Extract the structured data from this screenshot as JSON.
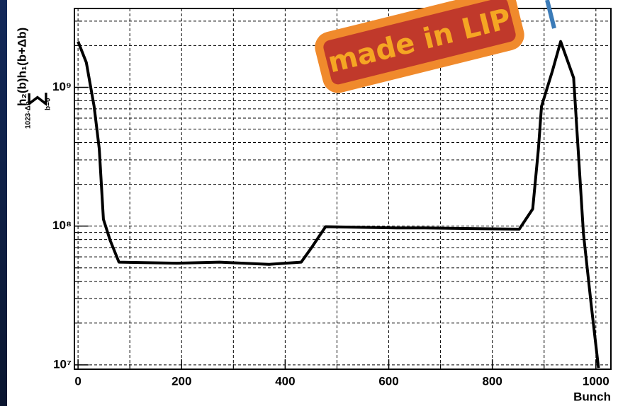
{
  "chart_data": {
    "type": "line",
    "x_label": "Bunch",
    "y_label": "h₂(b)h₁(b+Δb)",
    "y_label_sum_upper": "1023-Δb",
    "y_label_sum_lower": "b=0",
    "annotation": "made in LIP",
    "x": [
      0,
      16,
      31,
      41,
      49,
      62,
      79,
      191,
      273,
      369,
      431,
      451,
      478,
      615,
      670,
      852,
      878,
      889,
      895,
      916,
      932,
      957,
      976,
      991,
      1005
    ],
    "series": [
      {
        "color": "#000000",
        "values": [
          2140000000,
          1510000000,
          730000000,
          360000000,
          112000000,
          79000000,
          55000000,
          54000000,
          55000000,
          53000000,
          55000000,
          70000000,
          99000000,
          97000000,
          97000000,
          95000000,
          133000000,
          360000000,
          730000000,
          1310000000,
          2140000000,
          1170000000,
          88000000,
          27000000,
          9500000
        ]
      }
    ],
    "xlim": [
      -7,
      1029
    ],
    "ylim": [
      9300000,
      3700000000
    ],
    "xticks": [
      0,
      200,
      400,
      600,
      800,
      1000
    ],
    "yticks": [
      {
        "value": 10000000,
        "label": "10⁷"
      },
      {
        "value": 100000000,
        "label": "10⁸"
      },
      {
        "value": 1000000000,
        "label": "10⁹"
      }
    ],
    "log_y": true,
    "grid": true
  }
}
